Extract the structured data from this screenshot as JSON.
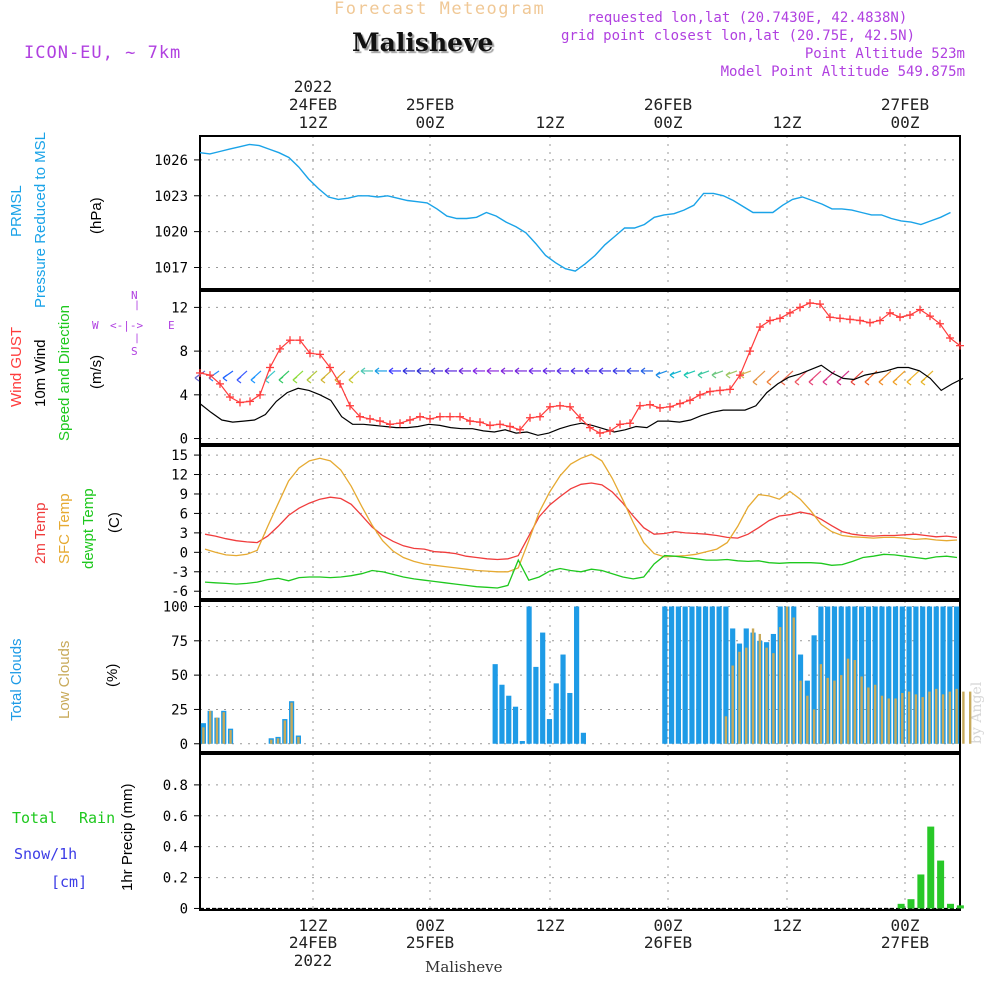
{
  "header": {
    "title": "Forecast Meteogram",
    "location": "Malisheve",
    "model": "ICON-EU, ~ 7km",
    "requested": "requested lon,lat (20.7430E, 42.4838N)",
    "gridpoint": "grid point closest lon,lat (20.75E, 42.5N)",
    "point_alt": "Point Altitude 523m",
    "model_alt": "Model Point Altitude 549.875m"
  },
  "top_time_labels": [
    {
      "l1": "2022",
      "l2": "24FEB",
      "l3": "12Z"
    },
    {
      "l1": "",
      "l2": "25FEB",
      "l3": "00Z"
    },
    {
      "l1": "",
      "l2": "",
      "l3": "12Z"
    },
    {
      "l1": "",
      "l2": "26FEB",
      "l3": "00Z"
    },
    {
      "l1": "",
      "l2": "",
      "l3": "12Z"
    },
    {
      "l1": "",
      "l2": "27FEB",
      "l3": "00Z"
    }
  ],
  "bottom_time_labels": [
    {
      "l1": "12Z",
      "l2": "24FEB",
      "l3": "2022"
    },
    {
      "l1": "00Z",
      "l2": "25FEB",
      "l3": ""
    },
    {
      "l1": "12Z",
      "l2": "",
      "l3": ""
    },
    {
      "l1": "00Z",
      "l2": "26FEB",
      "l3": ""
    },
    {
      "l1": "12Z",
      "l2": "",
      "l3": ""
    },
    {
      "l1": "00Z",
      "l2": "27FEB",
      "l3": ""
    }
  ],
  "footer_location": "Malisheve",
  "watermark": "by Angel",
  "labels": {
    "pressure": {
      "l1": "PRMSL",
      "l2": "Pressure Reduced to MSL",
      "unit": "(hPa)"
    },
    "wind": {
      "gust": "Wind GUST",
      "w10": "10m Wind",
      "dir": "Speed and Direction",
      "unit": "(m/s)"
    },
    "temp": {
      "t2m": "2m Temp",
      "sfc": "SFC Temp",
      "dewpt": "dewpt Temp",
      "unit": "(C)"
    },
    "clouds": {
      "total": "Total Clouds",
      "low": "Low Clouds",
      "unit": "(%)"
    },
    "precip": {
      "rain1": "Total",
      "rain2": "Rain",
      "snow": "Snow/1h",
      "snow_unit": "[cm]",
      "axis": "1hr Precip (mm)"
    }
  },
  "compass": {
    "n": "N",
    "s": "S",
    "w": "W",
    "e": "E"
  },
  "colors": {
    "pressure": "#1aa3e8",
    "gust": "#ff3c3c",
    "wind10": "#000000",
    "t2m": "#f03c3c",
    "sfc": "#e6aa32",
    "dewpt": "#1ec81e",
    "total_cloud": "#1e9be6",
    "low_cloud": "#c8aa5a",
    "rain": "#28c828",
    "purple": "#b040e0",
    "title": "#f0c896"
  },
  "chart_data": [
    {
      "type": "line",
      "title": "PRMSL Pressure Reduced to MSL",
      "ylabel": "(hPa)",
      "ylim": [
        1015.2,
        1028.0
      ],
      "yticks": [
        1017,
        1020,
        1023,
        1026
      ],
      "x_hours": [
        0,
        1,
        2,
        3,
        4,
        5,
        6,
        7,
        8,
        9,
        10,
        11,
        12,
        13,
        14,
        15,
        16,
        17,
        18,
        19,
        20,
        21,
        22,
        23,
        24,
        25,
        26,
        27,
        28,
        29,
        30,
        31,
        32,
        33,
        34,
        35,
        36,
        37,
        38,
        39,
        40,
        41,
        42,
        43,
        44,
        45,
        46,
        47,
        48,
        49,
        50,
        51,
        52,
        53,
        54,
        55,
        56,
        57,
        58,
        59,
        60,
        61,
        62,
        63,
        64,
        65,
        66,
        67,
        68,
        69,
        70,
        71,
        72,
        73,
        74,
        75,
        76
      ],
      "values": [
        1026.6,
        1026.5,
        1026.7,
        1026.9,
        1027.1,
        1027.3,
        1027.2,
        1026.9,
        1026.6,
        1026.2,
        1025.4,
        1024.4,
        1023.6,
        1022.9,
        1022.7,
        1022.8,
        1023.0,
        1023.0,
        1022.9,
        1023.0,
        1022.8,
        1022.6,
        1022.5,
        1022.4,
        1021.9,
        1021.3,
        1021.1,
        1021.1,
        1021.2,
        1021.6,
        1021.3,
        1020.8,
        1020.4,
        1019.9,
        1019.0,
        1018.0,
        1017.4,
        1016.9,
        1016.7,
        1017.3,
        1018.0,
        1018.9,
        1019.6,
        1020.3,
        1020.3,
        1020.6,
        1021.2,
        1021.4,
        1021.5,
        1021.8,
        1022.2,
        1023.2,
        1023.2,
        1023.0,
        1022.6,
        1022.1,
        1021.6,
        1021.6,
        1021.6,
        1022.2,
        1022.7,
        1022.9,
        1022.6,
        1022.3,
        1021.9,
        1021.9,
        1021.8,
        1021.6,
        1021.4,
        1021.4,
        1021.1,
        1020.9,
        1020.8,
        1020.6,
        1020.9,
        1021.2,
        1021.6
      ]
    },
    {
      "type": "line",
      "title": "Wind GUST / 10m Wind Speed and Direction",
      "ylabel": "(m/s)",
      "ylim": [
        -0.5,
        13.5
      ],
      "yticks": [
        0,
        4,
        8,
        12
      ],
      "series": [
        {
          "name": "Wind GUST",
          "values": [
            6.0,
            5.8,
            5.0,
            3.8,
            3.3,
            3.4,
            4.0,
            6.5,
            8.2,
            9.0,
            9.0,
            7.8,
            7.7,
            6.5,
            5.0,
            3.0,
            2.0,
            1.8,
            1.6,
            1.3,
            1.4,
            1.7,
            2.0,
            1.8,
            2.0,
            2.0,
            2.0,
            1.6,
            1.5,
            1.2,
            1.3,
            1.1,
            0.8,
            1.9,
            2.0,
            2.9,
            3.0,
            2.9,
            1.9,
            1.0,
            0.5,
            0.7,
            1.3,
            1.4,
            3.0,
            3.1,
            2.8,
            2.9,
            3.2,
            3.5,
            4.0,
            4.3,
            4.4,
            4.5,
            5.8,
            8.0,
            10.2,
            10.8,
            11.0,
            11.5,
            12.0,
            12.4,
            12.3,
            11.1,
            11.0,
            10.9,
            10.8,
            10.6,
            10.8,
            11.5,
            11.1,
            11.3,
            11.8,
            11.2,
            10.5,
            9.2,
            8.5
          ]
        },
        {
          "name": "10m Wind",
          "values": [
            3.2,
            2.4,
            1.7,
            1.5,
            1.6,
            1.7,
            2.2,
            3.4,
            4.2,
            4.6,
            4.4,
            4.0,
            3.5,
            2.0,
            1.3,
            1.3,
            1.2,
            1.1,
            1.0,
            1.0,
            1.1,
            1.3,
            1.2,
            1.0,
            0.9,
            0.9,
            0.7,
            0.6,
            0.8,
            0.5,
            0.6,
            0.3,
            0.5,
            0.9,
            1.2,
            1.4,
            1.2,
            0.9,
            0.6,
            0.8,
            1.1,
            1.0,
            1.6,
            1.6,
            1.5,
            1.7,
            2.1,
            2.4,
            2.6,
            2.6,
            2.6,
            3.0,
            4.2,
            5.0,
            5.6,
            5.9,
            6.3,
            6.7,
            6.0,
            5.5,
            5.4,
            5.8,
            6.0,
            6.2,
            6.5,
            6.5,
            6.2,
            5.5,
            4.4,
            5.0,
            5.5
          ]
        }
      ],
      "arrow_colors": [
        "#6e6ed2",
        "#2a8cff",
        "#1e64ff",
        "#3c5aff",
        "#1e96ff",
        "#3cc8c8",
        "#32c864",
        "#8cdc3c",
        "#b4c83c",
        "#d2b432",
        "#dca028",
        "#c8c832",
        "#50c8b4",
        "#1ea0e6",
        "#3c3cff",
        "#3232dc",
        "#3232d2",
        "#4632dc",
        "#5a28dc",
        "#6e28dc",
        "#8228e6",
        "#8c28dc",
        "#8228dc",
        "#7828dc",
        "#6e28e6",
        "#6428e6",
        "#5a32e6",
        "#5032e6",
        "#5032e6",
        "#4632e6",
        "#3c3ce6",
        "#3246e6",
        "#2864e6",
        "#1e8ce6",
        "#14b4d2",
        "#1ec8b4",
        "#3cc8a0",
        "#6ec882",
        "#a0c864",
        "#d2b450",
        "#e69646",
        "#f0823c",
        "#f06e50",
        "#f05a64",
        "#e64678",
        "#dc3c8c",
        "#d2328c",
        "#e6463c",
        "#f06428",
        "#f08c28",
        "#f0a028",
        "#f0b428",
        "#e6b428"
      ]
    },
    {
      "type": "line",
      "title": "2m Temp / SFC Temp / dewpt Temp",
      "ylabel": "(C)",
      "ylim": [
        -7.2,
        16.4
      ],
      "yticks": [
        -6,
        -3,
        0,
        3,
        6,
        9,
        12,
        15
      ],
      "series": [
        {
          "name": "2m Temp",
          "values": [
            2.8,
            2.5,
            2.1,
            1.8,
            1.6,
            1.5,
            2.5,
            4.0,
            5.7,
            6.8,
            7.6,
            8.2,
            8.5,
            8.3,
            7.4,
            5.7,
            3.9,
            2.6,
            1.7,
            1.0,
            0.6,
            0.5,
            0.1,
            0.0,
            -0.2,
            -0.6,
            -0.8,
            -1.0,
            -1.1,
            -1.0,
            -0.5,
            2.5,
            5.5,
            7.3,
            8.6,
            9.8,
            10.5,
            10.7,
            10.4,
            9.3,
            7.6,
            5.6,
            3.8,
            2.8,
            2.9,
            3.2,
            3.0,
            2.9,
            2.8,
            2.6,
            2.3,
            2.2,
            2.8,
            3.8,
            4.9,
            5.6,
            5.8,
            6.2,
            5.9,
            5.1,
            4.1,
            3.2,
            2.8,
            2.6,
            2.5,
            2.6,
            2.6,
            2.7,
            2.8,
            2.6,
            2.4,
            2.5,
            2.3
          ]
        },
        {
          "name": "SFC Temp",
          "values": [
            0.5,
            0.0,
            -0.4,
            -0.5,
            -0.3,
            0.3,
            4.0,
            7.5,
            11.0,
            13.0,
            14.1,
            14.5,
            14.1,
            12.7,
            10.2,
            7.1,
            4.2,
            1.8,
            0.2,
            -0.8,
            -1.4,
            -1.8,
            -2.0,
            -2.2,
            -2.4,
            -2.6,
            -2.8,
            -2.9,
            -3.0,
            -3.0,
            -2.4,
            1.8,
            6.2,
            9.3,
            11.8,
            13.6,
            14.5,
            15.1,
            14.1,
            11.4,
            8.1,
            4.6,
            1.5,
            -0.2,
            -0.7,
            -0.6,
            -0.5,
            -0.3,
            0.1,
            0.5,
            1.5,
            4.0,
            7.0,
            8.9,
            8.7,
            8.2,
            9.4,
            8.2,
            6.4,
            4.3,
            3.2,
            2.6,
            2.4,
            2.3,
            2.2,
            2.3,
            2.3,
            2.2,
            2.0,
            2.1,
            1.9,
            1.8,
            1.9
          ]
        },
        {
          "name": "dewpt Temp",
          "values": [
            -4.6,
            -4.7,
            -4.8,
            -4.9,
            -4.8,
            -4.6,
            -4.2,
            -4.0,
            -4.4,
            -3.9,
            -3.8,
            -3.8,
            -3.9,
            -3.8,
            -3.6,
            -3.3,
            -2.8,
            -3.0,
            -3.4,
            -3.8,
            -4.1,
            -4.3,
            -4.5,
            -4.7,
            -4.9,
            -5.1,
            -5.3,
            -5.4,
            -5.5,
            -5.1,
            -1.2,
            -4.3,
            -3.8,
            -2.9,
            -2.5,
            -2.8,
            -3.0,
            -2.6,
            -2.8,
            -3.3,
            -3.8,
            -4.1,
            -3.8,
            -1.8,
            -0.5,
            -0.6,
            -0.8,
            -1.0,
            -1.2,
            -1.2,
            -1.1,
            -1.3,
            -1.4,
            -1.3,
            -1.6,
            -1.7,
            -1.6,
            -1.6,
            -1.6,
            -1.7,
            -2.0,
            -1.9,
            -1.4,
            -0.8,
            -0.6,
            -0.3,
            -0.4,
            -0.6,
            -0.8,
            -1.0,
            -0.7,
            -0.6,
            -0.8
          ]
        }
      ]
    },
    {
      "type": "bar",
      "title": "Total Clouds / Low Clouds",
      "ylabel": "(%)",
      "ylim": [
        -6,
        104
      ],
      "yticks": [
        0,
        25,
        50,
        75,
        100
      ],
      "series": [
        {
          "name": "Total Clouds",
          "values": [
            15,
            24,
            19,
            24,
            11,
            0,
            0,
            0,
            0,
            0,
            4,
            5,
            18,
            31,
            6,
            0,
            0,
            0,
            0,
            0,
            0,
            0,
            0,
            0,
            0,
            0,
            0,
            0,
            0,
            0,
            0,
            0,
            0,
            0,
            0,
            0,
            0,
            0,
            0,
            0,
            0,
            0,
            0,
            58,
            43,
            35,
            27,
            2,
            100,
            56,
            81,
            18,
            44,
            65,
            37,
            100,
            8,
            0,
            0,
            0,
            0,
            0,
            0,
            0,
            0,
            0,
            0,
            0,
            100,
            100,
            100,
            100,
            100,
            100,
            100,
            100,
            100,
            100,
            84,
            73,
            84,
            81,
            75,
            74,
            80,
            100,
            100,
            100,
            65,
            46,
            79,
            100,
            100,
            100,
            100,
            100,
            100,
            100,
            100,
            100,
            100,
            100,
            100,
            100,
            100,
            100,
            100,
            100,
            100,
            100,
            100,
            100
          ]
        },
        {
          "name": "Low Clouds",
          "values": [
            12,
            24,
            19,
            23,
            10,
            0,
            0,
            0,
            0,
            0,
            3,
            4,
            17,
            30,
            5,
            0,
            0,
            0,
            0,
            0,
            0,
            0,
            0,
            0,
            0,
            0,
            0,
            0,
            0,
            0,
            0,
            0,
            0,
            0,
            0,
            0,
            0,
            0,
            0,
            0,
            0,
            0,
            0,
            0,
            0,
            0,
            0,
            0,
            0,
            0,
            0,
            0,
            0,
            0,
            0,
            0,
            0,
            0,
            0,
            0,
            0,
            0,
            0,
            0,
            0,
            0,
            0,
            0,
            0,
            0,
            0,
            0,
            0,
            0,
            0,
            0,
            0,
            20,
            57,
            67,
            70,
            84,
            80,
            70,
            66,
            85,
            100,
            92,
            46,
            35,
            25,
            58,
            48,
            46,
            50,
            62,
            61,
            49,
            41,
            43,
            35,
            33,
            33,
            37,
            38,
            36,
            34,
            38,
            40,
            36,
            38,
            40,
            38,
            38
          ]
        }
      ]
    },
    {
      "type": "bar",
      "title": "Total Rain / Snow/1h",
      "ylabel": "1hr Precip (mm)",
      "ylim": [
        -0.01,
        1.0
      ],
      "yticks": [
        0,
        0.2,
        0.4,
        0.6,
        0.8
      ],
      "series": [
        {
          "name": "Total Rain",
          "values": [
            0,
            0,
            0,
            0,
            0,
            0,
            0,
            0,
            0,
            0,
            0,
            0,
            0,
            0,
            0,
            0,
            0,
            0,
            0,
            0,
            0,
            0,
            0,
            0,
            0,
            0,
            0,
            0,
            0,
            0,
            0,
            0,
            0,
            0,
            0,
            0,
            0,
            0,
            0,
            0,
            0,
            0,
            0,
            0,
            0,
            0,
            0,
            0,
            0,
            0,
            0,
            0,
            0,
            0,
            0,
            0,
            0,
            0,
            0,
            0,
            0,
            0,
            0,
            0,
            0,
            0,
            0,
            0,
            0,
            0,
            0,
            0.03,
            0.06,
            0.22,
            0.53,
            0.31,
            0.03,
            0.02
          ]
        }
      ]
    }
  ]
}
